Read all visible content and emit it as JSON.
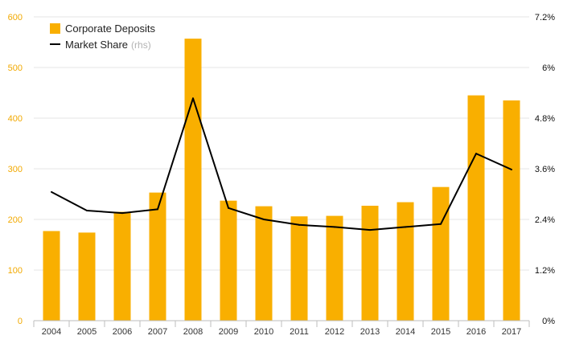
{
  "colors": {
    "bar": "#F9AF00",
    "line": "#000000",
    "left_axis_text": "#F2A900",
    "right_axis_text": "#111111"
  },
  "legend": {
    "bar_label": "Corporate Deposits",
    "line_label": "Market Share",
    "line_suffix": "(rhs)",
    "placement": "top-left"
  },
  "chart_data": {
    "type": "bar",
    "categories": [
      "2004",
      "2005",
      "2006",
      "2007",
      "2008",
      "2009",
      "2010",
      "2011",
      "2012",
      "2013",
      "2014",
      "2015",
      "2016",
      "2017"
    ],
    "series": [
      {
        "name": "Corporate Deposits",
        "type": "bar",
        "axis": "left",
        "values": [
          177,
          174,
          215,
          253,
          557,
          237,
          226,
          206,
          207,
          227,
          234,
          264,
          445,
          435
        ]
      },
      {
        "name": "Market Share",
        "type": "line",
        "axis": "right",
        "values": [
          3.05,
          2.61,
          2.55,
          2.64,
          5.27,
          2.67,
          2.4,
          2.27,
          2.22,
          2.15,
          2.22,
          2.29,
          3.96,
          3.58
        ]
      }
    ],
    "ylim": [
      0,
      600
    ],
    "y_ticks": [
      "0",
      "100",
      "200",
      "300",
      "400",
      "500",
      "600"
    ],
    "y2lim": [
      0,
      7.2
    ],
    "y2_ticks": [
      "0%",
      "1.2%",
      "2.4%",
      "3.6%",
      "4.8%",
      "6%",
      "7.2%"
    ],
    "grid": true
  }
}
